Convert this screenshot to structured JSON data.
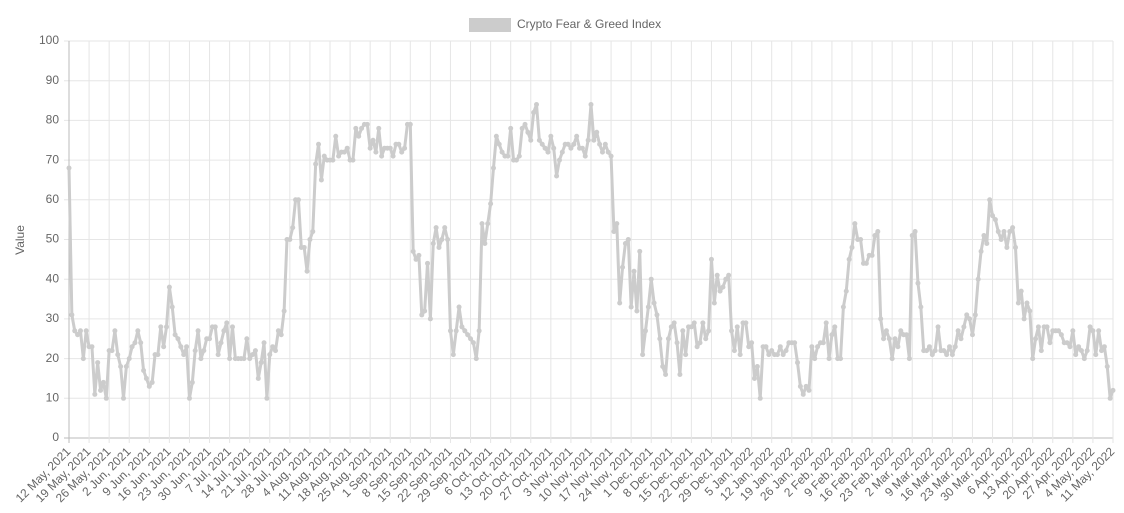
{
  "chart_data": {
    "type": "line",
    "y_label": "Value",
    "ylim": [
      0,
      100
    ],
    "yticks": [
      0,
      10,
      20,
      30,
      40,
      50,
      60,
      70,
      80,
      90,
      100
    ],
    "grid": true,
    "legend": "top",
    "categories": [
      "12 May, 2021",
      null,
      null,
      null,
      null,
      null,
      null,
      "19 May, 2021",
      null,
      null,
      null,
      null,
      null,
      null,
      "26 May, 2021",
      null,
      null,
      null,
      null,
      null,
      null,
      "2 Jun, 2021",
      null,
      null,
      null,
      null,
      null,
      null,
      "9 Jun, 2021",
      null,
      null,
      null,
      null,
      null,
      null,
      "16 Jun, 2021",
      null,
      null,
      null,
      null,
      null,
      null,
      "23 Jun, 2021",
      null,
      null,
      null,
      null,
      null,
      null,
      "30 Jun, 2021",
      null,
      null,
      null,
      null,
      null,
      null,
      "7 Jul, 2021",
      null,
      null,
      null,
      null,
      null,
      null,
      "14 Jul, 2021",
      null,
      null,
      null,
      null,
      null,
      null,
      "21 Jul, 2021",
      null,
      null,
      null,
      null,
      null,
      null,
      "28 Jul, 2021",
      null,
      null,
      null,
      null,
      null,
      null,
      "4 Aug, 2021",
      null,
      null,
      null,
      null,
      null,
      null,
      "11 Aug, 2021",
      null,
      null,
      null,
      null,
      null,
      null,
      "18 Aug, 2021",
      null,
      null,
      null,
      null,
      null,
      null,
      "25 Aug, 2021",
      null,
      null,
      null,
      null,
      null,
      null,
      "1 Sep, 2021",
      null,
      null,
      null,
      null,
      null,
      null,
      "8 Sep, 2021",
      null,
      null,
      null,
      null,
      null,
      null,
      "15 Sep, 2021",
      null,
      null,
      null,
      null,
      null,
      null,
      "22 Sep, 2021",
      null,
      null,
      null,
      null,
      null,
      null,
      "29 Sep, 2021",
      null,
      null,
      null,
      null,
      null,
      null,
      "6 Oct, 2021",
      null,
      null,
      null,
      null,
      null,
      null,
      "13 Oct, 2021",
      null,
      null,
      null,
      null,
      null,
      null,
      "20 Oct, 2021",
      null,
      null,
      null,
      null,
      null,
      null,
      "27 Oct, 2021",
      null,
      null,
      null,
      null,
      null,
      null,
      "3 Nov, 2021",
      null,
      null,
      null,
      null,
      null,
      null,
      "10 Nov, 2021",
      null,
      null,
      null,
      null,
      null,
      null,
      "17 Nov, 2021",
      null,
      null,
      null,
      null,
      null,
      null,
      "24 Nov, 2021",
      null,
      null,
      null,
      null,
      null,
      null,
      "1 Dec, 2021",
      null,
      null,
      null,
      null,
      null,
      null,
      "8 Dec, 2021",
      null,
      null,
      null,
      null,
      null,
      null,
      "15 Dec, 2021",
      null,
      null,
      null,
      null,
      null,
      null,
      "22 Dec, 2021",
      null,
      null,
      null,
      null,
      null,
      null,
      "29 Dec, 2021",
      null,
      null,
      null,
      null,
      null,
      null,
      "5 Jan, 2022",
      null,
      null,
      null,
      null,
      null,
      null,
      "12 Jan, 2022",
      null,
      null,
      null,
      null,
      null,
      null,
      "19 Jan, 2022",
      null,
      null,
      null,
      null,
      null,
      null,
      "26 Jan, 2022",
      null,
      null,
      null,
      null,
      null,
      null,
      "2 Feb, 2022",
      null,
      null,
      null,
      null,
      null,
      null,
      "9 Feb, 2022",
      null,
      null,
      null,
      null,
      null,
      null,
      "16 Feb, 2022",
      null,
      null,
      null,
      null,
      null,
      null,
      "23 Feb, 2022",
      null,
      null,
      null,
      null,
      null,
      null,
      "2 Mar, 2022",
      null,
      null,
      null,
      null,
      null,
      null,
      "9 Mar, 2022",
      null,
      null,
      null,
      null,
      null,
      null,
      "16 Mar, 2022",
      null,
      null,
      null,
      null,
      null,
      null,
      "23 Mar, 2022",
      null,
      null,
      null,
      null,
      null,
      null,
      "30 Mar, 2022",
      null,
      null,
      null,
      null,
      null,
      null,
      "6 Apr, 2022",
      null,
      null,
      null,
      null,
      null,
      null,
      "13 Apr, 2022",
      null,
      null,
      null,
      null,
      null,
      null,
      "20 Apr, 2022",
      null,
      null,
      null,
      null,
      null,
      null,
      "27 Apr, 2022",
      null,
      null,
      null,
      null,
      null,
      null,
      "4 May, 2022",
      null,
      null,
      null,
      null,
      null,
      null,
      "11 May, 2022"
    ],
    "series": [
      {
        "name": "Crypto Fear & Greed Index",
        "color": "#cccccc",
        "values": [
          68,
          31,
          27,
          26,
          27,
          20,
          27,
          23,
          23,
          11,
          19,
          12,
          14,
          10,
          22,
          22,
          27,
          21,
          18,
          10,
          18,
          20,
          23,
          24,
          27,
          24,
          17,
          15,
          13,
          14,
          21,
          21,
          28,
          23,
          28,
          38,
          33,
          26,
          25,
          23,
          21,
          23,
          10,
          14,
          22,
          27,
          20,
          22,
          25,
          25,
          28,
          28,
          21,
          24,
          27,
          29,
          20,
          28,
          20,
          20,
          20,
          20,
          25,
          20,
          21,
          22,
          15,
          19,
          24,
          10,
          21,
          23,
          22,
          27,
          26,
          32,
          50,
          50,
          53,
          60,
          60,
          48,
          48,
          42,
          50,
          52,
          69,
          74,
          65,
          71,
          70,
          70,
          70,
          76,
          71,
          72,
          72,
          73,
          70,
          70,
          78,
          76,
          78,
          79,
          79,
          73,
          75,
          72,
          78,
          71,
          73,
          73,
          73,
          71,
          74,
          74,
          72,
          73,
          79,
          79,
          47,
          45,
          46,
          31,
          32,
          44,
          30,
          49,
          53,
          48,
          50,
          53,
          50,
          27,
          21,
          27,
          33,
          28,
          27,
          26,
          25,
          24,
          20,
          27,
          54,
          49,
          54,
          59,
          68,
          76,
          74,
          72,
          71,
          71,
          78,
          70,
          70,
          71,
          78,
          79,
          77,
          75,
          82,
          84,
          75,
          74,
          73,
          72,
          76,
          73,
          66,
          70,
          72,
          74,
          74,
          73,
          74,
          76,
          73,
          73,
          71,
          75,
          84,
          75,
          77,
          74,
          72,
          74,
          72,
          71,
          52,
          54,
          34,
          43,
          49,
          50,
          33,
          42,
          32,
          47,
          21,
          27,
          33,
          40,
          34,
          31,
          25,
          18,
          16,
          25,
          28,
          29,
          24,
          16,
          27,
          21,
          28,
          28,
          29,
          23,
          24,
          29,
          25,
          27,
          45,
          34,
          41,
          37,
          38,
          40,
          41,
          27,
          22,
          28,
          21,
          29,
          29,
          23,
          24,
          15,
          18,
          10,
          23,
          23,
          21,
          22,
          21,
          21,
          23,
          21,
          22,
          24,
          24,
          24,
          19,
          13,
          11,
          13,
          12,
          23,
          20,
          23,
          24,
          24,
          29,
          20,
          26,
          28,
          20,
          20,
          33,
          37,
          45,
          48,
          54,
          50,
          50,
          44,
          44,
          46,
          46,
          51,
          52,
          30,
          25,
          27,
          25,
          20,
          25,
          23,
          27,
          26,
          26,
          20,
          51,
          52,
          39,
          33,
          22,
          22,
          23,
          21,
          22,
          28,
          22,
          22,
          21,
          23,
          21,
          23,
          27,
          25,
          28,
          31,
          30,
          26,
          31,
          40,
          47,
          51,
          49,
          60,
          56,
          55,
          52,
          50,
          52,
          48,
          52,
          53,
          48,
          34,
          37,
          30,
          34,
          32,
          20,
          25,
          28,
          22,
          28,
          28,
          24,
          27,
          27,
          27,
          26,
          24,
          24,
          23,
          27,
          21,
          23,
          22,
          20,
          22,
          28,
          27,
          21,
          27,
          22,
          23,
          18,
          10,
          12
        ]
      }
    ]
  }
}
